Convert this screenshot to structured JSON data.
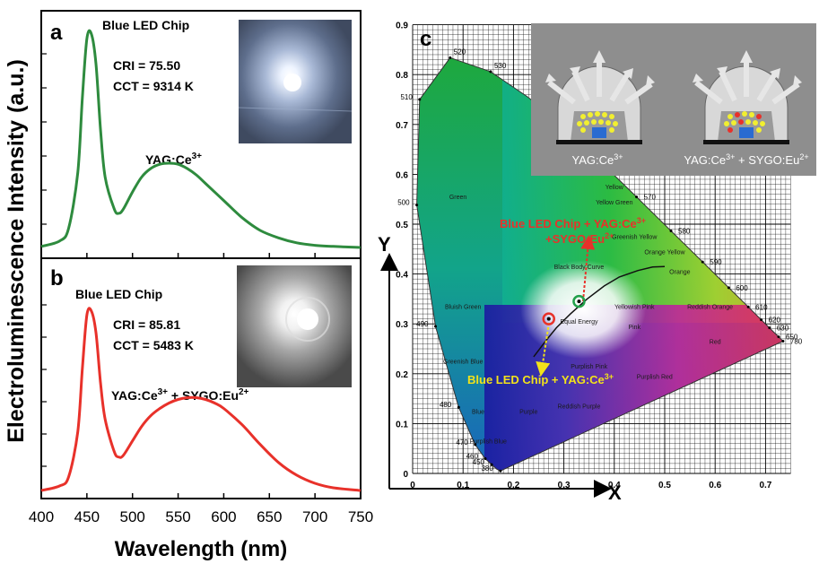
{
  "figure": {
    "ylabel_shared": "Electroluminescence Intensity",
    "ylabel_unit": "(a.u.)",
    "xlabel": "Wavelength (nm)"
  },
  "panel_a": {
    "letter": "a",
    "chip_label": "Blue LED Chip",
    "cri_text": "CRI  = 75.50",
    "cct_text": "CCT = 9314 K",
    "phosphor_label": "YAG:Ce3+",
    "line_color": "#2e8b3e"
  },
  "panel_b": {
    "letter": "b",
    "chip_label": "Blue LED Chip",
    "cri_text": "CRI  = 85.81",
    "cct_text": "CCT = 5483 K",
    "phosphor_label": "YAG:Ce3+ + SYGO:Eu2+",
    "line_color": "#e8312a"
  },
  "panel_c": {
    "letter": "c",
    "x_axis_letter": "X",
    "y_axis_letter": "Y",
    "inset_label_1": "YAG:Ce3+",
    "inset_label_2": "YAG:Ce3+ + SYGO:Eu2+",
    "annot_red": "Blue LED Chip + YAG:Ce3+ +SYGO:Eu2+",
    "annot_yellow": "Blue LED Chip + YAG:Ce3+",
    "region_labels": [
      "Green",
      "Yellow Green",
      "Yellow",
      "Greenish Yellow",
      "Orange Yellow",
      "Orange",
      "Bluish Green",
      "Equal Energy",
      "Yellowish Pink",
      "Reddish Orange",
      "Pink",
      "Red",
      "Greenish Blue",
      "Purplish Pink",
      "Purplish Red",
      "Blue",
      "Purple",
      "Reddish Purple",
      "Purplish Blue",
      "Black Body Curve"
    ],
    "wavelength_ticks": [
      "380",
      "450",
      "460",
      "470",
      "480",
      "490",
      "500",
      "510",
      "520",
      "530",
      "570",
      "580",
      "590",
      "600",
      "610",
      "620",
      "630",
      "650",
      "780"
    ]
  },
  "chart_data": [
    {
      "type": "line",
      "panel": "a",
      "xlabel": "Wavelength (nm)",
      "ylabel": "Electroluminescence Intensity (a.u.)",
      "xlim": [
        400,
        750
      ],
      "x_ticks": [
        400,
        450,
        500,
        550,
        600,
        650,
        700,
        750
      ],
      "series": [
        {
          "name": "YAG:Ce3+",
          "x": [
            400,
            420,
            430,
            440,
            445,
            450,
            455,
            460,
            465,
            470,
            480,
            485,
            490,
            500,
            510,
            520,
            530,
            540,
            550,
            560,
            570,
            580,
            600,
            620,
            640,
            660,
            680,
            700,
            720,
            750
          ],
          "y": [
            0.005,
            0.03,
            0.09,
            0.35,
            0.7,
            0.98,
            1.0,
            0.86,
            0.55,
            0.33,
            0.18,
            0.16,
            0.18,
            0.26,
            0.33,
            0.37,
            0.39,
            0.395,
            0.39,
            0.37,
            0.34,
            0.3,
            0.22,
            0.14,
            0.08,
            0.045,
            0.022,
            0.01,
            0.005,
            0.0
          ]
        }
      ]
    },
    {
      "type": "line",
      "panel": "b",
      "xlabel": "Wavelength (nm)",
      "ylabel": "Electroluminescence Intensity (a.u.)",
      "xlim": [
        400,
        750
      ],
      "x_ticks": [
        400,
        450,
        500,
        550,
        600,
        650,
        700,
        750
      ],
      "series": [
        {
          "name": "YAG:Ce3+ + SYGO:Eu2+",
          "x": [
            400,
            420,
            430,
            440,
            445,
            450,
            455,
            460,
            465,
            470,
            480,
            485,
            490,
            500,
            510,
            520,
            530,
            540,
            550,
            560,
            570,
            580,
            590,
            600,
            620,
            640,
            660,
            680,
            700,
            720,
            750
          ],
          "y": [
            0.005,
            0.03,
            0.08,
            0.33,
            0.68,
            0.98,
            1.0,
            0.88,
            0.6,
            0.4,
            0.22,
            0.19,
            0.2,
            0.28,
            0.36,
            0.42,
            0.46,
            0.49,
            0.51,
            0.52,
            0.52,
            0.51,
            0.49,
            0.46,
            0.37,
            0.26,
            0.16,
            0.09,
            0.045,
            0.02,
            0.005
          ]
        }
      ]
    },
    {
      "type": "scatter",
      "panel": "c",
      "xlabel": "X",
      "ylabel": "Y",
      "xlim": [
        0,
        0.75
      ],
      "ylim": [
        0,
        0.9
      ],
      "x_ticks": [
        0,
        0.1,
        0.2,
        0.3,
        0.4,
        0.5,
        0.6,
        0.7
      ],
      "y_ticks": [
        0,
        0.1,
        0.2,
        0.3,
        0.4,
        0.5,
        0.6,
        0.7,
        0.8,
        0.9
      ],
      "series": [
        {
          "name": "Blue LED Chip + YAG:Ce3+",
          "x": [
            0.27
          ],
          "y": [
            0.31
          ],
          "color": "#e8312a"
        },
        {
          "name": "Blue LED Chip + YAG:Ce3+ +SYGO:Eu2+",
          "x": [
            0.33
          ],
          "y": [
            0.345
          ],
          "color": "#21a04a"
        }
      ],
      "spectral_locus": {
        "x": [
          0.1741,
          0.1666,
          0.144,
          0.1241,
          0.0913,
          0.0454,
          0.0082,
          0.0139,
          0.0743,
          0.1547,
          0.2296,
          0.3016,
          0.3731,
          0.4441,
          0.5125,
          0.5752,
          0.627,
          0.6658,
          0.6915,
          0.7347
        ],
        "y": [
          0.005,
          0.0089,
          0.0297,
          0.0578,
          0.1327,
          0.295,
          0.5384,
          0.7502,
          0.8338,
          0.8059,
          0.7543,
          0.6923,
          0.6245,
          0.5547,
          0.4866,
          0.4242,
          0.3725,
          0.334,
          0.3083,
          0.2653
        ]
      },
      "planckian": {
        "x": [
          0.24,
          0.265,
          0.285,
          0.313,
          0.346,
          0.38,
          0.41,
          0.447,
          0.476,
          0.5
        ],
        "y": [
          0.234,
          0.267,
          0.292,
          0.32,
          0.35,
          0.376,
          0.394,
          0.407,
          0.414,
          0.415
        ]
      },
      "grid": true
    }
  ]
}
